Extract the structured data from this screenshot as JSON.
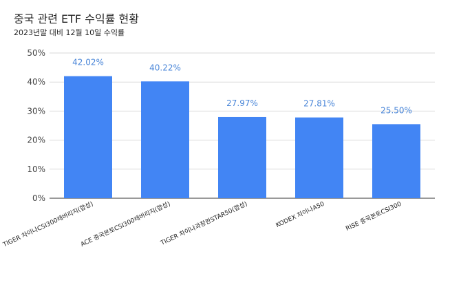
{
  "chart_data": {
    "type": "bar",
    "title": "중국 관련 ETF 수익률 현황",
    "subtitle": "2023년말 대비 12월 10일 수익률",
    "categories": [
      "TIGER 차이나CSI300레버리지(합성)",
      "ACE 중국본토CSI300레버리지(합성)",
      "TIGER 차이나과창판STAR50(합성)",
      "KODEX 차이나A50",
      "RISE 중국본토CSI300"
    ],
    "values": [
      42.02,
      40.22,
      27.97,
      27.81,
      25.5
    ],
    "data_labels": [
      "42.02%",
      "40.22%",
      "27.97%",
      "27.81%",
      "25.50%"
    ],
    "ylim": [
      0,
      50
    ],
    "yticks": [
      0,
      10,
      20,
      30,
      40,
      50
    ],
    "ytick_labels": [
      "0%",
      "10%",
      "20%",
      "30%",
      "40%",
      "50%"
    ],
    "xlabel": "",
    "ylabel": "",
    "grid": true,
    "bar_color": "#4285f4",
    "label_color": "#4a86d8"
  }
}
